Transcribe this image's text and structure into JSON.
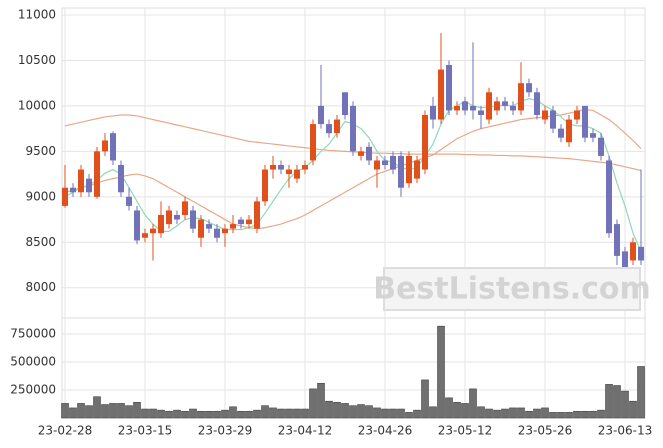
{
  "chart_data": {
    "type": "candlestick",
    "watermark": "BestListens.com",
    "categories": [
      "23-02-28",
      null,
      null,
      null,
      null,
      null,
      null,
      null,
      null,
      null,
      "23-03-15",
      null,
      null,
      null,
      null,
      null,
      null,
      null,
      null,
      null,
      "23-03-29",
      null,
      null,
      null,
      null,
      null,
      null,
      null,
      null,
      null,
      "23-04-12",
      null,
      null,
      null,
      null,
      null,
      null,
      null,
      null,
      null,
      "23-04-26",
      null,
      null,
      null,
      null,
      null,
      null,
      null,
      null,
      null,
      "23-05-12",
      null,
      null,
      null,
      null,
      null,
      null,
      null,
      null,
      null,
      "23-05-26",
      null,
      null,
      null,
      null,
      null,
      null,
      null,
      null,
      null,
      "23-06-13",
      null,
      null
    ],
    "open": [
      8900,
      9100,
      9050,
      9200,
      9000,
      9500,
      9700,
      9350,
      9000,
      8850,
      8550,
      8600,
      8600,
      8700,
      8800,
      8800,
      8850,
      8550,
      8700,
      8650,
      8600,
      8650,
      8750,
      8700,
      8650,
      8950,
      9300,
      9350,
      9250,
      9200,
      9300,
      9400,
      10000,
      9800,
      9700,
      10150,
      10000,
      9450,
      9550,
      9300,
      9400,
      9450,
      9450,
      9150,
      9200,
      9300,
      10000,
      9850,
      10450,
      9950,
      10050,
      10000,
      9950,
      9850,
      9950,
      10050,
      10000,
      9950,
      10250,
      10150,
      9850,
      9950,
      9750,
      9600,
      9850,
      10000,
      9700,
      9650,
      9400,
      8700,
      8400,
      8300,
      8450
    ],
    "high": [
      9350,
      9150,
      9350,
      9250,
      9550,
      9700,
      9720,
      9400,
      9100,
      8900,
      8650,
      8700,
      8950,
      8900,
      8850,
      9000,
      8900,
      8800,
      8750,
      8700,
      8700,
      8800,
      8780,
      8800,
      9000,
      9350,
      9450,
      9400,
      9350,
      9350,
      9400,
      9850,
      10450,
      9850,
      9900,
      10150,
      10050,
      9550,
      9600,
      9450,
      9450,
      9500,
      9500,
      9500,
      9450,
      9950,
      10100,
      10800,
      10500,
      10050,
      10100,
      10700,
      10000,
      10200,
      10100,
      10100,
      10050,
      10480,
      10300,
      10200,
      10000,
      10000,
      9800,
      9900,
      10000,
      10000,
      9750,
      9700,
      9450,
      8750,
      8450,
      8550,
      9300
    ],
    "low": [
      8880,
      9000,
      9000,
      9000,
      8980,
      9450,
      9350,
      9000,
      8850,
      8480,
      8500,
      8300,
      8550,
      8650,
      8700,
      8750,
      8600,
      8450,
      8600,
      8500,
      8450,
      8600,
      8650,
      8650,
      8600,
      8900,
      9200,
      9250,
      9100,
      9150,
      9250,
      9350,
      9750,
      9650,
      9650,
      9850,
      9450,
      9400,
      9350,
      9100,
      9300,
      9250,
      9000,
      9100,
      9150,
      9250,
      9750,
      9800,
      9900,
      9900,
      9900,
      9850,
      9750,
      9800,
      9900,
      9950,
      9900,
      9900,
      10100,
      9850,
      9800,
      9700,
      9600,
      9550,
      9800,
      9600,
      9600,
      9400,
      8550,
      8250,
      8200,
      8250,
      8250
    ],
    "close": [
      9100,
      9050,
      9300,
      9050,
      9500,
      9620,
      9400,
      9050,
      8900,
      8520,
      8600,
      8650,
      8800,
      8850,
      8750,
      8950,
      8650,
      8750,
      8650,
      8550,
      8650,
      8700,
      8700,
      8750,
      8950,
      9300,
      9350,
      9300,
      9300,
      9300,
      9350,
      9800,
      9800,
      9700,
      9850,
      9900,
      9500,
      9500,
      9400,
      9400,
      9350,
      9300,
      9100,
      9450,
      9400,
      9900,
      9850,
      10400,
      9950,
      10000,
      9950,
      9950,
      9900,
      10150,
      10050,
      10000,
      9950,
      10250,
      10150,
      9900,
      9950,
      9750,
      9650,
      9850,
      9950,
      9650,
      9650,
      9450,
      8600,
      8350,
      8200,
      8500,
      8300
    ],
    "up_color": "#e0501c",
    "down_color": "#7272b8",
    "lines": [
      {
        "color": "#e8a888",
        "values": [
          9780,
          9800,
          9820,
          9840,
          9860,
          9880,
          9890,
          9900,
          9900,
          9890,
          9870,
          9850,
          9830,
          9810,
          9790,
          9770,
          9750,
          9730,
          9710,
          9690,
          9670,
          9650,
          9630,
          9610,
          9600,
          9590,
          9580,
          9570,
          9560,
          9550,
          9540,
          9530,
          9520,
          9510,
          9505,
          9500,
          9495,
          9490,
          9485,
          9480,
          9480,
          9475,
          9475,
          9470,
          9470,
          9470,
          9470,
          9470,
          9470,
          9470,
          9465,
          9465,
          9460,
          9460,
          9455,
          9455,
          9450,
          9450,
          9445,
          9440,
          9435,
          9430,
          9425,
          9420,
          9410,
          9400,
          9390,
          9380,
          9370,
          9350,
          9330,
          9310,
          9290
        ]
      },
      {
        "color": "#e8a888",
        "values": [
          9050,
          9070,
          9100,
          9120,
          9150,
          9180,
          9200,
          9220,
          9240,
          9250,
          9230,
          9200,
          9150,
          9100,
          9050,
          9000,
          8950,
          8900,
          8850,
          8800,
          8750,
          8700,
          8680,
          8660,
          8650,
          8660,
          8680,
          8700,
          8730,
          8760,
          8800,
          8850,
          8900,
          8950,
          9000,
          9050,
          9100,
          9150,
          9200,
          9250,
          9280,
          9310,
          9340,
          9370,
          9400,
          9430,
          9460,
          9520,
          9580,
          9640,
          9680,
          9720,
          9750,
          9770,
          9790,
          9810,
          9830,
          9850,
          9860,
          9870,
          9880,
          9890,
          9900,
          9920,
          9940,
          9960,
          9950,
          9900,
          9850,
          9780,
          9700,
          9620,
          9530
        ]
      },
      {
        "color": "#8fd8b8",
        "values": [
          9000,
          9050,
          9100,
          9130,
          9180,
          9260,
          9300,
          9250,
          9100,
          8950,
          8800,
          8700,
          8620,
          8620,
          8680,
          8750,
          8770,
          8760,
          8720,
          8680,
          8640,
          8640,
          8640,
          8660,
          8700,
          8820,
          8950,
          9080,
          9200,
          9280,
          9320,
          9400,
          9500,
          9580,
          9700,
          9830,
          9800,
          9750,
          9650,
          9500,
          9400,
          9380,
          9320,
          9300,
          9320,
          9450,
          9580,
          9800,
          9950,
          10000,
          10050,
          10000,
          9980,
          9990,
          10000,
          10010,
          10000,
          10050,
          10080,
          10060,
          10000,
          9950,
          9880,
          9800,
          9780,
          9780,
          9750,
          9700,
          9450,
          9150,
          8900,
          8600,
          8400
        ]
      }
    ],
    "ylim": [
      7700,
      11000
    ],
    "yticks": [
      8000,
      8500,
      9000,
      9500,
      10000,
      10500,
      11000
    ],
    "volume": {
      "color": "#707070",
      "values": [
        130000,
        90000,
        130000,
        110000,
        190000,
        120000,
        130000,
        130000,
        110000,
        140000,
        80000,
        80000,
        70000,
        60000,
        70000,
        60000,
        80000,
        60000,
        60000,
        60000,
        70000,
        100000,
        60000,
        60000,
        70000,
        110000,
        90000,
        80000,
        80000,
        80000,
        80000,
        260000,
        310000,
        150000,
        140000,
        130000,
        110000,
        120000,
        110000,
        90000,
        80000,
        80000,
        80000,
        50000,
        70000,
        340000,
        100000,
        820000,
        180000,
        140000,
        130000,
        260000,
        100000,
        80000,
        70000,
        80000,
        90000,
        90000,
        60000,
        80000,
        90000,
        50000,
        50000,
        50000,
        60000,
        60000,
        60000,
        70000,
        300000,
        290000,
        240000,
        150000,
        460000
      ],
      "ylim": [
        0,
        875000
      ],
      "yticks": [
        250000,
        500000,
        750000
      ]
    },
    "grid": true
  }
}
